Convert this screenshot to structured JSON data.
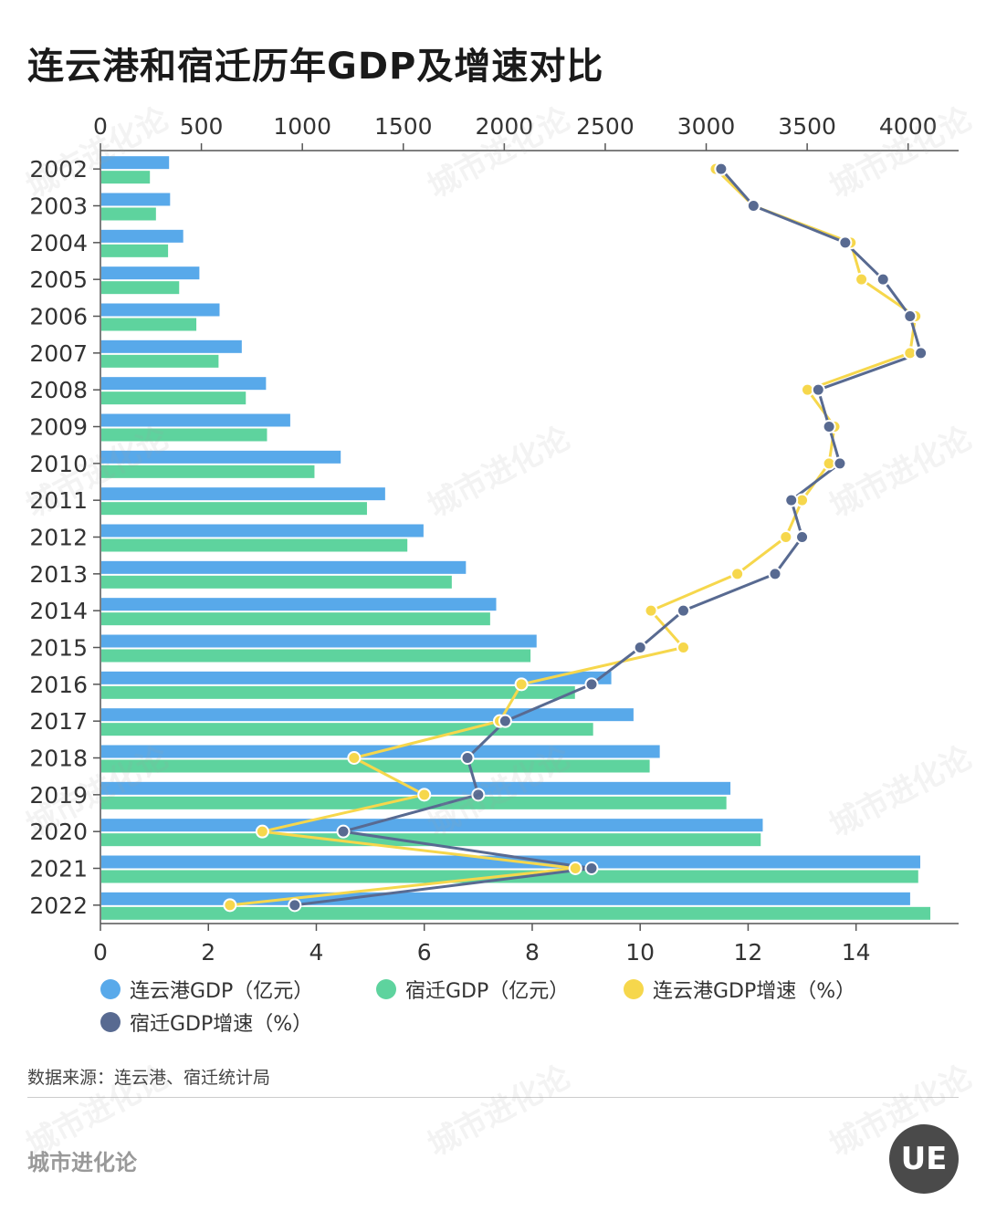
{
  "title": "连云港和宿迁历年GDP及增速对比",
  "source": "数据来源：连云港、宿迁统计局",
  "brand": "城市进化论",
  "logo_text": "UE",
  "watermark": "城市进化论",
  "legend": [
    {
      "label": "连云港GDP（亿元）",
      "color": "#58a9ea"
    },
    {
      "label": "宿迁GDP（亿元）",
      "color": "#5ed39e"
    },
    {
      "label": "连云港GDP增速（%）",
      "color": "#f6d74c"
    },
    {
      "label": "宿迁GDP增速（%）",
      "color": "#586a91"
    }
  ],
  "chart_data": {
    "type": "bar",
    "orientation": "horizontal",
    "categories": [
      "2002",
      "2003",
      "2004",
      "2005",
      "2006",
      "2007",
      "2008",
      "2009",
      "2010",
      "2011",
      "2012",
      "2013",
      "2014",
      "2015",
      "2016",
      "2017",
      "2018",
      "2019",
      "2020",
      "2021",
      "2022"
    ],
    "gdp_axis": {
      "position": "top",
      "range": [
        0,
        4250
      ],
      "ticks": [
        0,
        500,
        1000,
        1500,
        2000,
        2500,
        3000,
        3500,
        4000
      ]
    },
    "growth_axis": {
      "position": "bottom",
      "range": [
        0,
        15.9
      ],
      "ticks": [
        0,
        2,
        4,
        6,
        8,
        10,
        12,
        14
      ]
    },
    "series": [
      {
        "name": "连云港GDP（亿元）",
        "type": "bar",
        "axis": "gdp",
        "color": "#58a9ea",
        "values": [
          340,
          345,
          410,
          490,
          590,
          700,
          820,
          940,
          1190,
          1410,
          1600,
          1810,
          1960,
          2160,
          2530,
          2640,
          2770,
          3120,
          3280,
          4060,
          4010
        ]
      },
      {
        "name": "宿迁GDP（亿元）",
        "type": "bar",
        "axis": "gdp",
        "color": "#5ed39e",
        "values": [
          245,
          275,
          335,
          390,
          475,
          585,
          720,
          825,
          1060,
          1320,
          1520,
          1740,
          1930,
          2130,
          2350,
          2440,
          2720,
          3100,
          3270,
          4050,
          4110
        ]
      },
      {
        "name": "连云港GDP增速（%）",
        "type": "line",
        "axis": "growth",
        "color": "#f6d74c",
        "values": [
          11.4,
          12.1,
          13.9,
          14.1,
          15.1,
          15.0,
          13.1,
          13.6,
          13.5,
          13.0,
          12.7,
          11.8,
          10.2,
          10.8,
          7.8,
          7.4,
          4.7,
          6.0,
          3.0,
          8.8,
          2.4
        ]
      },
      {
        "name": "宿迁GDP增速（%）",
        "type": "line",
        "axis": "growth",
        "color": "#586a91",
        "values": [
          11.5,
          12.1,
          13.8,
          14.5,
          15.0,
          15.2,
          13.3,
          13.5,
          13.7,
          12.8,
          13.0,
          12.5,
          10.8,
          10.0,
          9.1,
          7.5,
          6.8,
          7.0,
          4.5,
          9.1,
          3.6
        ]
      }
    ],
    "grid": false
  }
}
